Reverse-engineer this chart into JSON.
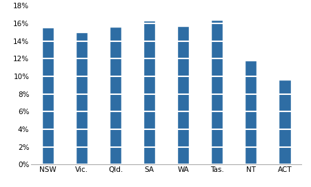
{
  "categories": [
    "NSW",
    "Vic.",
    "Qld.",
    "SA",
    "WA",
    "Tas.",
    "NT",
    "ACT"
  ],
  "values": [
    0.155,
    0.15,
    0.156,
    0.163,
    0.157,
    0.164,
    0.118,
    0.096
  ],
  "bar_color": "#2E6DA4",
  "ylim": [
    0,
    0.18
  ],
  "yticks": [
    0,
    0.02,
    0.04,
    0.06,
    0.08,
    0.1,
    0.12,
    0.14,
    0.16,
    0.18
  ],
  "background_color": "#FFFFFF",
  "plot_bg_color": "#FFFFFF",
  "grid_color": "#FFFFFF",
  "bar_edge_color": "#FFFFFF",
  "bar_width": 0.35,
  "figsize": [
    4.51,
    2.72
  ],
  "dpi": 100
}
